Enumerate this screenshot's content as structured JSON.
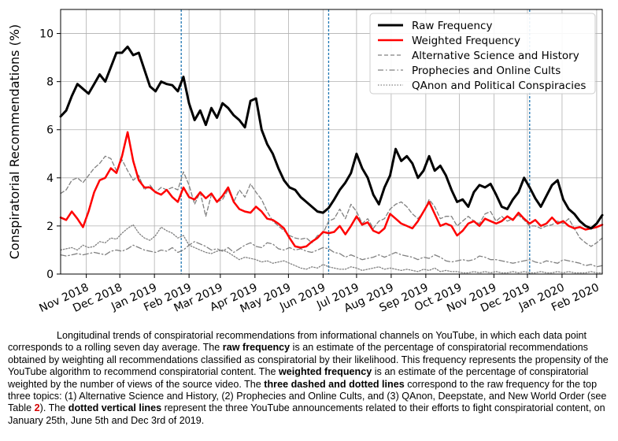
{
  "chart_data": {
    "type": "line",
    "ylabel": "Conspiratorial Recommendations (%)",
    "xlabel": "",
    "ylim": [
      0,
      11
    ],
    "y_ticks": [
      0,
      2,
      4,
      6,
      8,
      10
    ],
    "x_range_days": [
      0,
      485
    ],
    "x_ticks": [
      {
        "label": "Nov 2018",
        "day": 23
      },
      {
        "label": "Dec 2018",
        "day": 53
      },
      {
        "label": "Jan 2019",
        "day": 84
      },
      {
        "label": "Feb 2019",
        "day": 115
      },
      {
        "label": "Mar 2019",
        "day": 143
      },
      {
        "label": "Apr 2019",
        "day": 174
      },
      {
        "label": "May 2019",
        "day": 204
      },
      {
        "label": "Jun 2019",
        "day": 235
      },
      {
        "label": "Jul 2019",
        "day": 265
      },
      {
        "label": "Aug 2019",
        "day": 296
      },
      {
        "label": "Sep 2019",
        "day": 327
      },
      {
        "label": "Oct 2019",
        "day": 357
      },
      {
        "label": "Nov 2019",
        "day": 388
      },
      {
        "label": "Dec 2019",
        "day": 418
      },
      {
        "label": "Jan 2020",
        "day": 449
      },
      {
        "label": "Feb 2020",
        "day": 480
      }
    ],
    "vlines": [
      {
        "label": "Jan 25, 2019",
        "day": 108
      },
      {
        "label": "Jun 5, 2019",
        "day": 240
      },
      {
        "label": "Dec 3, 2019",
        "day": 420
      }
    ],
    "legend_position": "top-right",
    "series": [
      {
        "name": "Raw Frequency",
        "style": "solid-thick",
        "color": "#000000",
        "x": [
          0,
          5,
          10,
          15,
          20,
          25,
          30,
          35,
          40,
          45,
          50,
          55,
          60,
          65,
          70,
          75,
          80,
          85,
          90,
          95,
          100,
          105,
          110,
          115,
          120,
          125,
          130,
          135,
          140,
          145,
          150,
          155,
          160,
          165,
          170,
          175,
          180,
          185,
          190,
          195,
          200,
          205,
          210,
          215,
          220,
          225,
          230,
          235,
          240,
          245,
          250,
          255,
          260,
          265,
          270,
          275,
          280,
          285,
          290,
          295,
          300,
          305,
          310,
          315,
          320,
          325,
          330,
          335,
          340,
          345,
          350,
          355,
          360,
          365,
          370,
          375,
          380,
          385,
          390,
          395,
          400,
          405,
          410,
          415,
          420,
          425,
          430,
          435,
          440,
          445,
          450,
          455,
          460,
          465,
          470,
          475,
          480,
          485
        ],
        "values": [
          6.55,
          6.8,
          7.4,
          7.9,
          7.7,
          7.5,
          7.9,
          8.3,
          8.0,
          8.6,
          9.2,
          9.2,
          9.45,
          9.1,
          9.2,
          8.5,
          7.8,
          7.6,
          8.0,
          7.9,
          7.85,
          7.6,
          8.2,
          7.1,
          6.4,
          6.8,
          6.2,
          6.9,
          6.5,
          7.1,
          6.9,
          6.6,
          6.4,
          6.1,
          7.2,
          7.3,
          6.0,
          5.4,
          5.0,
          4.4,
          3.9,
          3.6,
          3.5,
          3.2,
          3.0,
          2.8,
          2.6,
          2.55,
          2.75,
          3.1,
          3.5,
          3.8,
          4.2,
          5.0,
          4.4,
          4.0,
          3.3,
          2.9,
          3.6,
          4.1,
          5.2,
          4.7,
          4.9,
          4.6,
          4.0,
          4.3,
          4.9,
          4.3,
          4.5,
          4.1,
          3.5,
          3.0,
          3.1,
          2.8,
          3.4,
          3.7,
          3.6,
          3.75,
          3.3,
          2.8,
          2.7,
          3.1,
          3.4,
          4.0,
          3.6,
          3.15,
          2.8,
          3.25,
          3.7,
          3.9,
          3.1,
          2.7,
          2.5,
          2.2,
          2.0,
          1.9,
          2.1,
          2.45
        ]
      },
      {
        "name": "Weighted Frequency",
        "style": "solid",
        "color": "#ff0000",
        "x": [
          0,
          5,
          10,
          15,
          20,
          25,
          30,
          35,
          40,
          45,
          50,
          55,
          60,
          65,
          70,
          75,
          80,
          85,
          90,
          95,
          100,
          105,
          110,
          115,
          120,
          125,
          130,
          135,
          140,
          145,
          150,
          155,
          160,
          165,
          170,
          175,
          180,
          185,
          190,
          195,
          200,
          205,
          210,
          215,
          220,
          225,
          230,
          235,
          240,
          245,
          250,
          255,
          260,
          265,
          270,
          275,
          280,
          285,
          290,
          295,
          300,
          305,
          310,
          315,
          320,
          325,
          330,
          335,
          340,
          345,
          350,
          355,
          360,
          365,
          370,
          375,
          380,
          385,
          390,
          395,
          400,
          405,
          410,
          415,
          420,
          425,
          430,
          435,
          440,
          445,
          450,
          455,
          460,
          465,
          470,
          475,
          480,
          485
        ],
        "values": [
          2.35,
          2.25,
          2.6,
          2.3,
          1.95,
          2.6,
          3.4,
          3.9,
          4.0,
          4.4,
          4.2,
          4.9,
          5.9,
          4.7,
          3.9,
          3.6,
          3.6,
          3.4,
          3.3,
          3.5,
          3.2,
          3.0,
          3.6,
          3.2,
          3.1,
          3.4,
          3.15,
          3.35,
          3.0,
          3.25,
          3.6,
          3.0,
          2.7,
          2.6,
          2.55,
          2.8,
          2.6,
          2.3,
          2.25,
          2.1,
          1.9,
          1.5,
          1.15,
          1.1,
          1.15,
          1.35,
          1.5,
          1.75,
          1.7,
          1.75,
          2.0,
          1.65,
          2.0,
          2.4,
          2.05,
          2.15,
          1.8,
          1.7,
          1.9,
          2.5,
          2.3,
          2.1,
          2.0,
          1.9,
          2.2,
          2.6,
          3.0,
          2.5,
          2.0,
          2.1,
          2.0,
          1.6,
          1.8,
          2.1,
          2.2,
          2.0,
          2.3,
          2.2,
          2.1,
          2.2,
          2.4,
          2.25,
          2.55,
          2.3,
          2.1,
          2.25,
          2.0,
          2.1,
          2.35,
          2.1,
          2.2,
          2.0,
          1.9,
          1.95,
          1.85,
          1.9,
          1.95,
          2.05
        ]
      },
      {
        "name": "Alternative Science and History",
        "style": "dashed",
        "color": "#808080",
        "x": [
          0,
          5,
          10,
          15,
          20,
          25,
          30,
          35,
          40,
          45,
          50,
          55,
          60,
          65,
          70,
          75,
          80,
          85,
          90,
          95,
          100,
          105,
          110,
          115,
          120,
          125,
          130,
          135,
          140,
          145,
          150,
          155,
          160,
          165,
          170,
          175,
          180,
          185,
          190,
          195,
          200,
          205,
          210,
          215,
          220,
          225,
          230,
          235,
          240,
          245,
          250,
          255,
          260,
          265,
          270,
          275,
          280,
          285,
          290,
          295,
          300,
          305,
          310,
          315,
          320,
          325,
          330,
          335,
          340,
          345,
          350,
          355,
          360,
          365,
          370,
          375,
          380,
          385,
          390,
          395,
          400,
          405,
          410,
          415,
          420,
          425,
          430,
          435,
          440,
          445,
          450,
          455,
          460,
          465,
          470,
          475,
          480,
          485
        ],
        "values": [
          3.35,
          3.5,
          3.9,
          4.0,
          3.8,
          4.1,
          4.4,
          4.6,
          4.9,
          4.8,
          4.3,
          4.75,
          4.3,
          3.9,
          4.1,
          3.5,
          3.7,
          3.4,
          3.6,
          3.5,
          3.6,
          3.5,
          4.25,
          3.7,
          2.9,
          3.4,
          2.4,
          3.3,
          3.0,
          3.1,
          3.5,
          3.0,
          3.5,
          3.2,
          3.75,
          3.4,
          3.1,
          2.6,
          2.2,
          2.0,
          1.8,
          1.6,
          1.5,
          1.45,
          1.5,
          1.3,
          1.6,
          1.7,
          2.2,
          2.3,
          2.7,
          2.3,
          2.9,
          2.6,
          2.1,
          2.3,
          1.9,
          2.2,
          2.3,
          2.7,
          2.9,
          3.0,
          2.8,
          2.5,
          2.3,
          2.6,
          3.1,
          2.8,
          2.3,
          2.4,
          2.4,
          2.0,
          2.2,
          2.4,
          2.2,
          2.1,
          2.5,
          2.6,
          2.2,
          2.4,
          2.2,
          2.3,
          2.45,
          2.25,
          2.0,
          2.0,
          1.9,
          2.0,
          2.05,
          2.2,
          2.1,
          2.3,
          1.9,
          1.5,
          1.3,
          1.15,
          1.3,
          1.5
        ]
      },
      {
        "name": "Prophecies and Online Cults",
        "style": "dashdot",
        "color": "#808080",
        "x": [
          0,
          5,
          10,
          15,
          20,
          25,
          30,
          35,
          40,
          45,
          50,
          55,
          60,
          65,
          70,
          75,
          80,
          85,
          90,
          95,
          100,
          105,
          110,
          115,
          120,
          125,
          130,
          135,
          140,
          145,
          150,
          155,
          160,
          165,
          170,
          175,
          180,
          185,
          190,
          195,
          200,
          205,
          210,
          215,
          220,
          225,
          230,
          235,
          240,
          245,
          250,
          255,
          260,
          265,
          270,
          275,
          280,
          285,
          290,
          295,
          300,
          305,
          310,
          315,
          320,
          325,
          330,
          335,
          340,
          345,
          350,
          355,
          360,
          365,
          370,
          375,
          380,
          385,
          390,
          395,
          400,
          405,
          410,
          415,
          420,
          425,
          430,
          435,
          440,
          445,
          450,
          455,
          460,
          465,
          470,
          475,
          480,
          485
        ],
        "values": [
          0.8,
          0.75,
          0.8,
          0.85,
          0.8,
          0.85,
          0.9,
          0.85,
          0.8,
          0.95,
          1.0,
          0.95,
          1.05,
          1.2,
          1.1,
          1.0,
          0.95,
          0.9,
          1.0,
          0.95,
          1.1,
          0.9,
          1.0,
          1.2,
          1.35,
          1.25,
          1.15,
          1.0,
          1.05,
          0.95,
          1.1,
          0.9,
          1.05,
          1.2,
          1.3,
          1.15,
          1.1,
          1.3,
          1.25,
          1.05,
          1.0,
          1.1,
          1.0,
          1.05,
          0.95,
          0.9,
          1.0,
          1.1,
          1.05,
          0.9,
          0.85,
          0.7,
          0.8,
          0.7,
          0.6,
          0.65,
          0.7,
          0.8,
          0.7,
          0.8,
          0.9,
          0.8,
          0.75,
          0.7,
          0.6,
          0.7,
          0.65,
          0.8,
          0.7,
          0.55,
          0.5,
          0.55,
          0.6,
          0.55,
          0.6,
          0.75,
          0.7,
          0.6,
          0.6,
          0.55,
          0.5,
          0.45,
          0.5,
          0.55,
          0.6,
          0.5,
          0.45,
          0.55,
          0.5,
          0.45,
          0.6,
          0.55,
          0.5,
          0.45,
          0.35,
          0.4,
          0.3,
          0.35
        ]
      },
      {
        "name": "QAnon and Political Conspiracies",
        "style": "dotted",
        "color": "#808080",
        "x": [
          0,
          5,
          10,
          15,
          20,
          25,
          30,
          35,
          40,
          45,
          50,
          55,
          60,
          65,
          70,
          75,
          80,
          85,
          90,
          95,
          100,
          105,
          110,
          115,
          120,
          125,
          130,
          135,
          140,
          145,
          150,
          155,
          160,
          165,
          170,
          175,
          180,
          185,
          190,
          195,
          200,
          205,
          210,
          215,
          220,
          225,
          230,
          235,
          240,
          245,
          250,
          255,
          260,
          265,
          270,
          275,
          280,
          285,
          290,
          295,
          300,
          305,
          310,
          315,
          320,
          325,
          330,
          335,
          340,
          345,
          350,
          355,
          360,
          365,
          370,
          375,
          380,
          385,
          390,
          395,
          400,
          405,
          410,
          415,
          420,
          425,
          430,
          435,
          440,
          445,
          450,
          455,
          460,
          465,
          470,
          475,
          480,
          485
        ],
        "values": [
          1.0,
          1.05,
          1.1,
          1.0,
          1.2,
          1.1,
          1.15,
          1.35,
          1.3,
          1.5,
          1.45,
          1.7,
          1.9,
          2.05,
          1.7,
          1.5,
          1.4,
          1.6,
          1.95,
          1.8,
          1.7,
          1.5,
          1.6,
          1.2,
          1.1,
          1.0,
          0.9,
          0.85,
          0.95,
          1.0,
          0.9,
          0.75,
          0.6,
          0.7,
          0.65,
          0.6,
          0.5,
          0.55,
          0.45,
          0.5,
          0.55,
          0.45,
          0.35,
          0.25,
          0.2,
          0.3,
          0.25,
          0.4,
          0.3,
          0.25,
          0.2,
          0.2,
          0.3,
          0.25,
          0.15,
          0.2,
          0.25,
          0.3,
          0.2,
          0.25,
          0.2,
          0.15,
          0.2,
          0.15,
          0.1,
          0.2,
          0.15,
          0.25,
          0.1,
          0.15,
          0.1,
          0.1,
          0.05,
          0.05,
          0.1,
          0.05,
          0.1,
          0.05,
          0.1,
          0.05,
          0.05,
          0.1,
          0.05,
          0.1,
          0.05,
          0.05,
          0.1,
          0.05,
          0.05,
          0.1,
          0.05,
          0.1,
          0.05,
          0.05,
          0.05,
          0.1,
          0.05,
          0.05
        ]
      }
    ]
  },
  "caption": {
    "p1": "Longitudinal trends of conspiratorial recommendations from informational channels on YouTube, in which each data point corresponds to a rolling seven day average. The ",
    "b1": "raw frequency",
    "p2": " is an estimate of the percentage of conspiratorial recommendations obtained by weighting all recommendations classified as conspiratorial by their likelihood. This frequency represents the propensity of the YouTube algorithm to recommend conspiratorial content. The ",
    "b2": "weighted frequency",
    "p3": " is an estimate of the percentage of conspiratorial weighted by the number of views of the source video. The ",
    "b3": "three dashed and dotted lines",
    "p4": " correspond to the raw frequency for the top three topics: (1) Alternative Science and History, (2) Prophecies and Online Cults, and (3) QAnon, Deepstate, and New World Order (see Table ",
    "ref": "2",
    "p5": "). The ",
    "b4": "dotted vertical lines",
    "p6": " represent the three YouTube announcements related to their efforts to fight conspiratorial content, on January 25th, June 5th and Dec 3rd of 2019."
  }
}
